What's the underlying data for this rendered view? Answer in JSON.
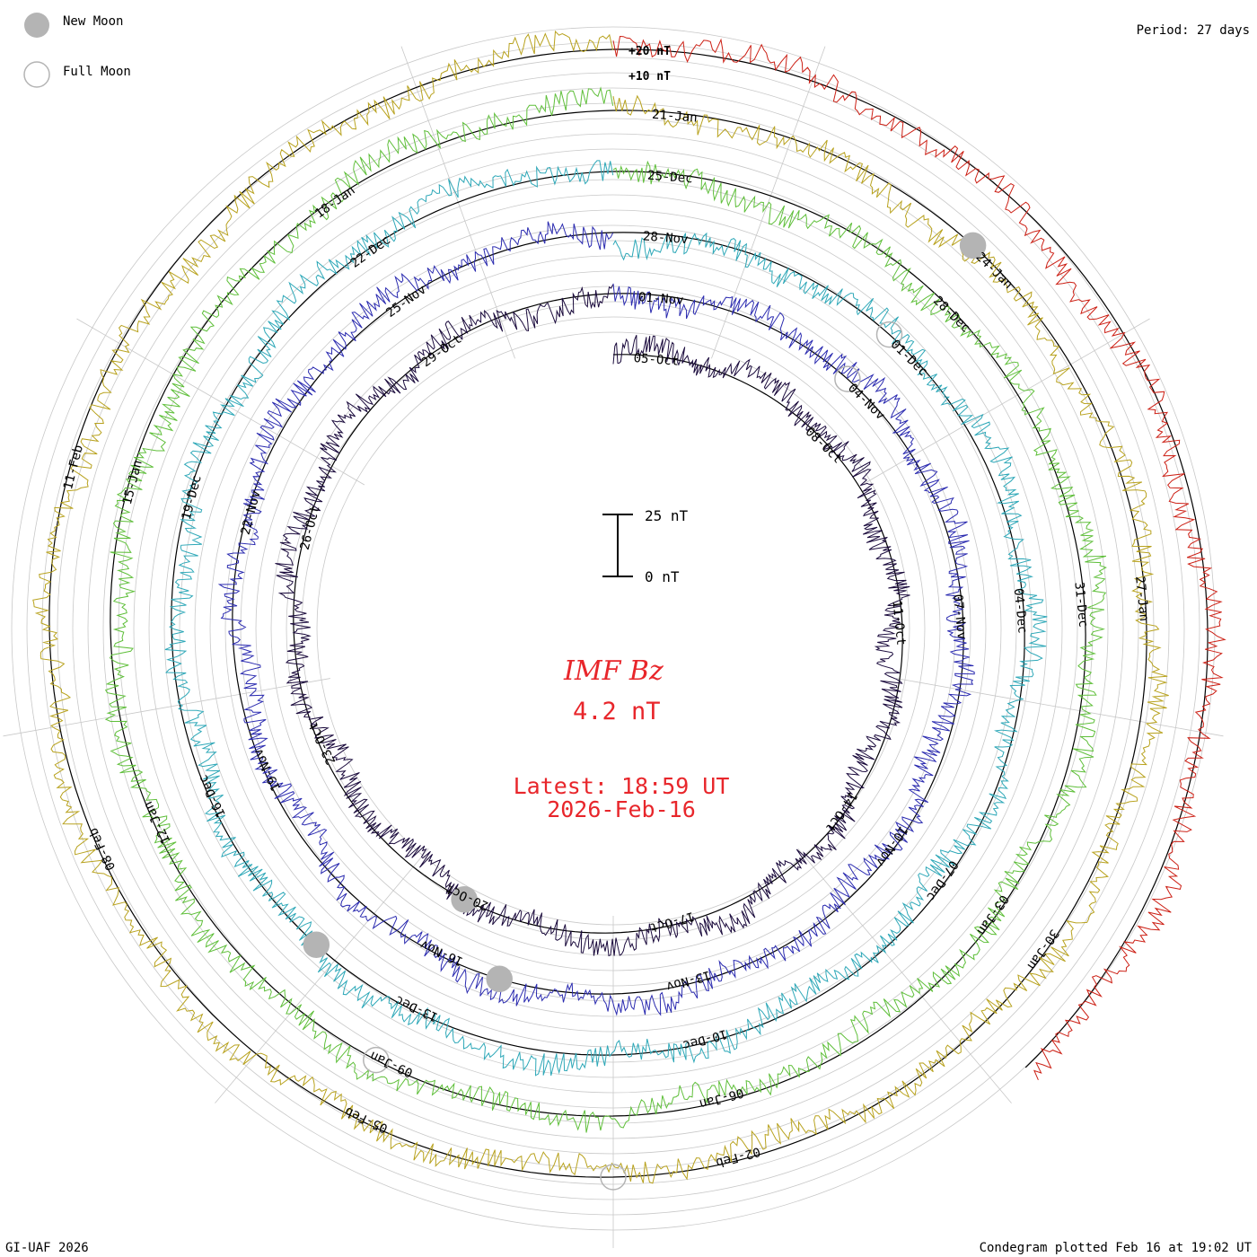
{
  "chart_data": {
    "type": "condegram",
    "title": "IMF Bz",
    "current_value": "4.2 nT",
    "latest_time": "Latest: 18:59 UT",
    "latest_date": "2026-Feb-16",
    "period_text": "Period: 27 days",
    "credit": "GI-UAF 2026",
    "plotted_text": "Condegram plotted Feb 16 at 19:02 UT",
    "legend": {
      "new_moon": "New Moon",
      "full_moon": "Full Moon"
    },
    "scale_labels": {
      "top": "+20 nT",
      "second": "+10 nT"
    },
    "scale_bar": {
      "top": "25 nT",
      "bottom": "0 nT"
    },
    "units": "nT",
    "rotations": [
      {
        "index": 0,
        "color": "#1a0a3c",
        "dates": [
          "05-Oct",
          "08-Oct",
          "11-Oct",
          "14-Oct",
          "17-Oct",
          "20-Oct",
          "23-Oct",
          "26-Oct",
          "29-Oct"
        ]
      },
      {
        "index": 1,
        "color": "#2b2bb0",
        "dates": [
          "01-Nov",
          "04-Nov",
          "07-Nov",
          "10-Nov",
          "13-Nov",
          "16-Nov",
          "19-Nov",
          "22-Nov",
          "25-Nov"
        ]
      },
      {
        "index": 2,
        "color": "#2ea8b8",
        "dates": [
          "28-Nov",
          "01-Dec",
          "04-Dec",
          "07-Dec",
          "10-Dec",
          "13-Dec",
          "16-Dec",
          "19-Dec",
          "22-Dec"
        ]
      },
      {
        "index": 3,
        "color": "#5fbf3a",
        "dates": [
          "25-Dec",
          "28-Dec",
          "31-Dec",
          "03-Jan",
          "06-Jan",
          "09-Jan",
          "12-Jan",
          "15-Jan",
          "18-Jan"
        ]
      },
      {
        "index": 4,
        "color": "#b8a21e",
        "dates": [
          "21-Jan",
          "24-Jan",
          "27-Jan",
          "30-Jan",
          "02-Feb",
          "05-Feb",
          "08-Feb",
          "11-Feb"
        ]
      },
      {
        "index": 5,
        "color": "#cc1f14",
        "dates": []
      }
    ]
  }
}
